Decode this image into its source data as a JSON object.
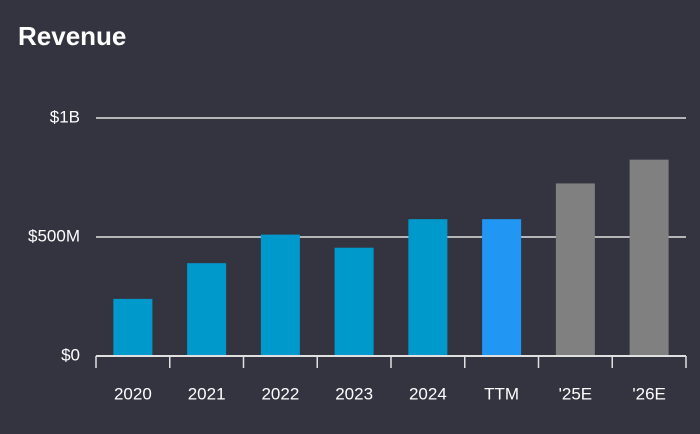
{
  "chart_data": {
    "type": "bar",
    "title": "Revenue",
    "categories": [
      "2020",
      "2021",
      "2022",
      "2023",
      "2024",
      "TTM",
      "'25E",
      "'26E"
    ],
    "values": [
      240000000,
      390000000,
      510000000,
      455000000,
      575000000,
      575000000,
      725000000,
      825000000
    ],
    "colors": [
      "#0099cc",
      "#0099cc",
      "#0099cc",
      "#0099cc",
      "#0099cc",
      "#2196f3",
      "#808080",
      "#808080"
    ],
    "ylim": [
      0,
      1000000000
    ],
    "yticks": [
      {
        "value": 0,
        "label": "$0"
      },
      {
        "value": 500000000,
        "label": "$500M"
      },
      {
        "value": 1000000000,
        "label": "$1B"
      }
    ],
    "grid": true
  }
}
